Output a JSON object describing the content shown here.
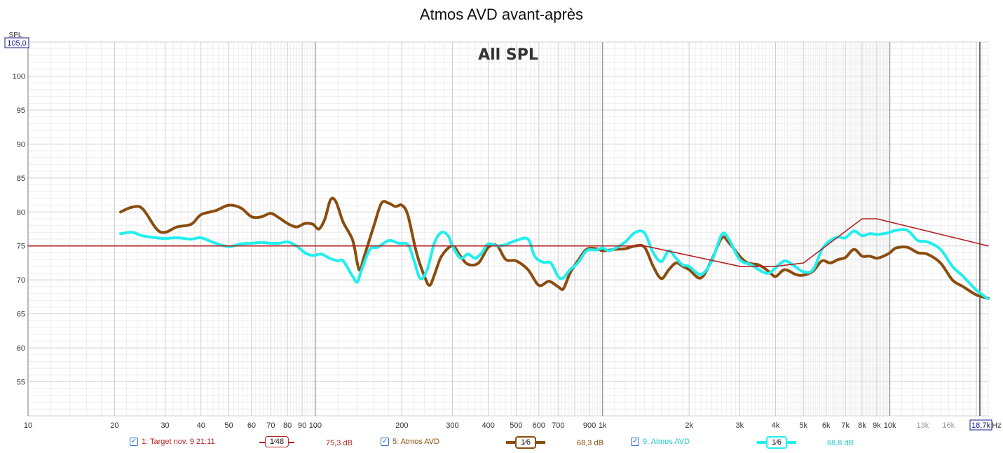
{
  "window": {
    "title": "Atmos AVD avant-après"
  },
  "overlay_label": "All SPL",
  "y_axis_unit": "SPL",
  "x_axis_unit": "Hz",
  "y_cursor_label": "105,0",
  "x_cursor_label": "18,7k",
  "colors": {
    "target": "#b22222",
    "before": "#8b4c0f",
    "after": "#22eeee",
    "grid": "#d8d8d8",
    "grid_decade": "#777777",
    "checkbox": "#2a6fd6"
  },
  "chart_data": {
    "type": "line",
    "title": "Atmos AVD avant-après",
    "xlabel": "Hz",
    "ylabel": "SPL",
    "xscale": "log",
    "xlim": [
      10,
      22000
    ],
    "ylim": [
      50,
      105
    ],
    "grid": true,
    "legend_position": "bottom",
    "x_tick_labels": [
      {
        "v": 10,
        "t": "10"
      },
      {
        "v": 20,
        "t": "20"
      },
      {
        "v": 30,
        "t": "30"
      },
      {
        "v": 40,
        "t": "40"
      },
      {
        "v": 50,
        "t": "50"
      },
      {
        "v": 60,
        "t": "60"
      },
      {
        "v": 70,
        "t": "70"
      },
      {
        "v": 80,
        "t": "80"
      },
      {
        "v": 90,
        "t": "90"
      },
      {
        "v": 100,
        "t": "100"
      },
      {
        "v": 200,
        "t": "200"
      },
      {
        "v": 300,
        "t": "300"
      },
      {
        "v": 400,
        "t": "400"
      },
      {
        "v": 500,
        "t": "500"
      },
      {
        "v": 600,
        "t": "600"
      },
      {
        "v": 700,
        "t": "700"
      },
      {
        "v": 900,
        "t": "900"
      },
      {
        "v": 1000,
        "t": "1k"
      },
      {
        "v": 2000,
        "t": "2k"
      },
      {
        "v": 3000,
        "t": "3k"
      },
      {
        "v": 4000,
        "t": "4k"
      },
      {
        "v": 5000,
        "t": "5k"
      },
      {
        "v": 6000,
        "t": "6k"
      },
      {
        "v": 7000,
        "t": "7k"
      },
      {
        "v": 8000,
        "t": "8k"
      },
      {
        "v": 9000,
        "t": "9k"
      },
      {
        "v": 10000,
        "t": "10k"
      },
      {
        "v": 13000,
        "t": "13k"
      },
      {
        "v": 16000,
        "t": "16k"
      }
    ],
    "y_ticks": [
      55,
      60,
      65,
      70,
      75,
      80,
      85,
      90,
      95,
      100
    ],
    "series": [
      {
        "name": "1: Target nov. 9 21:11",
        "color": "#b22222",
        "smoothing": "1⁄48",
        "level": "75,3 dB",
        "points": [
          [
            10,
            75
          ],
          [
            1000,
            75
          ],
          [
            1400,
            75
          ],
          [
            3000,
            72
          ],
          [
            4000,
            72
          ],
          [
            5000,
            72.5
          ],
          [
            8000,
            79
          ],
          [
            9000,
            79
          ],
          [
            22000,
            75
          ]
        ]
      },
      {
        "name": "5: Atmos AVD",
        "color": "#8b4c0f",
        "smoothing": "1⁄6",
        "level": "68,3 dB",
        "points": [
          [
            21,
            80
          ],
          [
            23,
            80.7
          ],
          [
            25,
            80.5
          ],
          [
            28,
            77.5
          ],
          [
            30,
            77
          ],
          [
            33,
            77.8
          ],
          [
            37,
            78.2
          ],
          [
            40,
            79.6
          ],
          [
            45,
            80.2
          ],
          [
            50,
            81
          ],
          [
            55,
            80.6
          ],
          [
            60,
            79.3
          ],
          [
            65,
            79.3
          ],
          [
            70,
            79.8
          ],
          [
            75,
            79.1
          ],
          [
            80,
            78.3
          ],
          [
            86,
            77.8
          ],
          [
            92,
            78.3
          ],
          [
            98,
            78.2
          ],
          [
            103,
            77.5
          ],
          [
            108,
            79
          ],
          [
            113,
            81.8
          ],
          [
            118,
            81.5
          ],
          [
            125,
            78.5
          ],
          [
            135,
            75.8
          ],
          [
            142,
            71.5
          ],
          [
            148,
            73.5
          ],
          [
            160,
            78
          ],
          [
            170,
            81.3
          ],
          [
            180,
            81.3
          ],
          [
            190,
            80.8
          ],
          [
            200,
            81
          ],
          [
            210,
            79.5
          ],
          [
            225,
            74
          ],
          [
            240,
            70.5
          ],
          [
            250,
            69.2
          ],
          [
            260,
            70.8
          ],
          [
            275,
            73.5
          ],
          [
            300,
            75
          ],
          [
            320,
            73.5
          ],
          [
            340,
            72.3
          ],
          [
            370,
            72.5
          ],
          [
            400,
            74.8
          ],
          [
            430,
            75
          ],
          [
            460,
            73
          ],
          [
            500,
            72.8
          ],
          [
            550,
            71.5
          ],
          [
            600,
            69.2
          ],
          [
            650,
            69.8
          ],
          [
            700,
            69
          ],
          [
            730,
            68.7
          ],
          [
            770,
            71
          ],
          [
            820,
            72.8
          ],
          [
            880,
            74.5
          ],
          [
            950,
            74.6
          ],
          [
            1000,
            74.3
          ],
          [
            1100,
            74.5
          ],
          [
            1200,
            74.6
          ],
          [
            1300,
            75
          ],
          [
            1400,
            74.8
          ],
          [
            1500,
            72
          ],
          [
            1600,
            70.2
          ],
          [
            1700,
            71.5
          ],
          [
            1800,
            72.5
          ],
          [
            1900,
            72
          ],
          [
            2000,
            71.5
          ],
          [
            2200,
            70.3
          ],
          [
            2400,
            73
          ],
          [
            2600,
            76.2
          ],
          [
            2750,
            75.5
          ],
          [
            3000,
            73.5
          ],
          [
            3200,
            72.5
          ],
          [
            3500,
            72.2
          ],
          [
            3800,
            71.2
          ],
          [
            4000,
            70.5
          ],
          [
            4300,
            71.5
          ],
          [
            4700,
            70.8
          ],
          [
            5000,
            70.7
          ],
          [
            5400,
            71.3
          ],
          [
            5800,
            72.8
          ],
          [
            6200,
            72.5
          ],
          [
            6600,
            73
          ],
          [
            7000,
            73.3
          ],
          [
            7500,
            74.5
          ],
          [
            8000,
            73.5
          ],
          [
            8500,
            73.5
          ],
          [
            9000,
            73.2
          ],
          [
            9500,
            73.5
          ],
          [
            10000,
            74
          ],
          [
            10500,
            74.7
          ],
          [
            11500,
            74.8
          ],
          [
            12500,
            74
          ],
          [
            13500,
            73.8
          ],
          [
            15000,
            72.5
          ],
          [
            16500,
            70
          ],
          [
            18000,
            69
          ],
          [
            20000,
            67.8
          ],
          [
            22000,
            67.3
          ]
        ]
      },
      {
        "name": "9: Atmos AVD",
        "color": "#22eeee",
        "smoothing": "1⁄6",
        "level": "68,8 dB",
        "points": [
          [
            21,
            76.8
          ],
          [
            23,
            77
          ],
          [
            25,
            76.5
          ],
          [
            28,
            76.2
          ],
          [
            30,
            76.1
          ],
          [
            33,
            76.2
          ],
          [
            37,
            76
          ],
          [
            40,
            76.2
          ],
          [
            45,
            75.4
          ],
          [
            50,
            74.9
          ],
          [
            55,
            75.3
          ],
          [
            60,
            75.4
          ],
          [
            65,
            75.5
          ],
          [
            70,
            75.4
          ],
          [
            75,
            75.4
          ],
          [
            80,
            75.6
          ],
          [
            86,
            75
          ],
          [
            92,
            74
          ],
          [
            98,
            73.6
          ],
          [
            105,
            73.8
          ],
          [
            112,
            73.2
          ],
          [
            120,
            72.8
          ],
          [
            125,
            72.8
          ],
          [
            135,
            70.5
          ],
          [
            140,
            69.7
          ],
          [
            145,
            71.5
          ],
          [
            155,
            74.5
          ],
          [
            165,
            74.8
          ],
          [
            180,
            75.8
          ],
          [
            195,
            75.4
          ],
          [
            210,
            75.2
          ],
          [
            220,
            73
          ],
          [
            232,
            70.2
          ],
          [
            245,
            71.5
          ],
          [
            260,
            75.5
          ],
          [
            275,
            77
          ],
          [
            290,
            76.5
          ],
          [
            300,
            75
          ],
          [
            320,
            73.2
          ],
          [
            340,
            73.8
          ],
          [
            360,
            73.2
          ],
          [
            380,
            74
          ],
          [
            400,
            75.3
          ],
          [
            430,
            75
          ],
          [
            460,
            75.2
          ],
          [
            500,
            75.8
          ],
          [
            550,
            76
          ],
          [
            580,
            73.5
          ],
          [
            620,
            72.6
          ],
          [
            660,
            72.5
          ],
          [
            700,
            70.5
          ],
          [
            730,
            70.3
          ],
          [
            770,
            71.5
          ],
          [
            820,
            72.5
          ],
          [
            880,
            74.3
          ],
          [
            950,
            74.4
          ],
          [
            1000,
            74.7
          ],
          [
            1050,
            74.3
          ],
          [
            1100,
            74.6
          ],
          [
            1200,
            75.6
          ],
          [
            1300,
            77
          ],
          [
            1400,
            76.9
          ],
          [
            1500,
            74
          ],
          [
            1600,
            72.7
          ],
          [
            1700,
            74.3
          ],
          [
            1800,
            73.2
          ],
          [
            1900,
            72.2
          ],
          [
            2000,
            72
          ],
          [
            2200,
            70.8
          ],
          [
            2400,
            72.8
          ],
          [
            2600,
            76.7
          ],
          [
            2750,
            76
          ],
          [
            3000,
            73
          ],
          [
            3300,
            72.2
          ],
          [
            3600,
            71.2
          ],
          [
            3800,
            71
          ],
          [
            4000,
            71.8
          ],
          [
            4300,
            72.8
          ],
          [
            4600,
            72.2
          ],
          [
            5000,
            71.2
          ],
          [
            5400,
            71.5
          ],
          [
            5800,
            74.5
          ],
          [
            6200,
            75.8
          ],
          [
            6600,
            76.3
          ],
          [
            7000,
            76.2
          ],
          [
            7500,
            77.2
          ],
          [
            8000,
            76.5
          ],
          [
            8500,
            76.8
          ],
          [
            9000,
            76.7
          ],
          [
            9500,
            76.8
          ],
          [
            10000,
            77
          ],
          [
            10500,
            77.3
          ],
          [
            11500,
            77.3
          ],
          [
            12500,
            75.8
          ],
          [
            13500,
            75.6
          ],
          [
            15000,
            74.5
          ],
          [
            16500,
            72
          ],
          [
            18000,
            70.5
          ],
          [
            20000,
            68.5
          ],
          [
            22000,
            67.2
          ]
        ]
      }
    ]
  }
}
